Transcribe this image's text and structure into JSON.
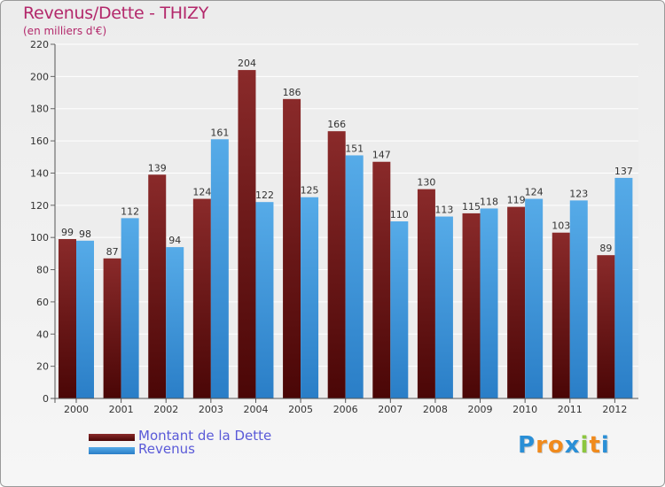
{
  "chart_data": {
    "type": "bar",
    "title": "Revenus/Dette - THIZY",
    "subtitle": "(en milliers d'€)",
    "categories": [
      "2000",
      "2001",
      "2002",
      "2003",
      "2004",
      "2005",
      "2006",
      "2007",
      "2008",
      "2009",
      "2010",
      "2011",
      "2012"
    ],
    "series": [
      {
        "name": "Montant de la Dette",
        "color": "#6e1414",
        "values": [
          99,
          87,
          139,
          124,
          204,
          186,
          166,
          147,
          130,
          115,
          119,
          103,
          89
        ]
      },
      {
        "name": "Revenus",
        "color": "#3f9be3",
        "values": [
          98,
          112,
          94,
          161,
          122,
          125,
          151,
          110,
          113,
          118,
          124,
          123,
          137
        ]
      }
    ],
    "ylim": [
      0,
      220
    ],
    "yticks": [
      0,
      20,
      40,
      60,
      80,
      100,
      120,
      140,
      160,
      180,
      200,
      220
    ],
    "grid": true,
    "legend_position": "bottom-left"
  },
  "logo": {
    "text": "Proxiti",
    "letters": [
      {
        "ch": "P",
        "color": "#2a8fd6"
      },
      {
        "ch": "r",
        "color": "#f08a1c"
      },
      {
        "ch": "o",
        "color": "#f08a1c"
      },
      {
        "ch": "x",
        "color": "#2a8fd6"
      },
      {
        "ch": "i",
        "color": "#8cc63e"
      },
      {
        "ch": "t",
        "color": "#f08a1c"
      },
      {
        "ch": "i",
        "color": "#2a8fd6"
      }
    ]
  }
}
